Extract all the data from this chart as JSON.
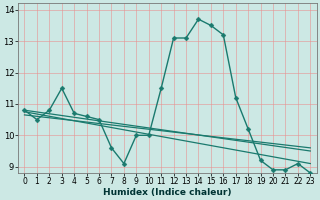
{
  "title": "",
  "xlabel": "Humidex (Indice chaleur)",
  "ylabel": "",
  "xlim": [
    -0.5,
    23.5
  ],
  "ylim": [
    8.8,
    14.2
  ],
  "xticks": [
    0,
    1,
    2,
    3,
    4,
    5,
    6,
    7,
    8,
    9,
    10,
    11,
    12,
    13,
    14,
    15,
    16,
    17,
    18,
    19,
    20,
    21,
    22,
    23
  ],
  "yticks": [
    9,
    10,
    11,
    12,
    13,
    14
  ],
  "background_color": "#cce8e4",
  "grid_color": "#e89090",
  "line_color": "#1a7a6e",
  "tick_fontsize": 5.5,
  "xlabel_fontsize": 6.5,
  "lines": [
    {
      "x": [
        0,
        1,
        2,
        3,
        4,
        5,
        6,
        7,
        8,
        9,
        10,
        11,
        12,
        13,
        14,
        15,
        16,
        17,
        18,
        19,
        20,
        21,
        22,
        23
      ],
      "y": [
        10.8,
        10.5,
        10.8,
        11.5,
        10.7,
        10.6,
        10.5,
        9.6,
        9.1,
        10.0,
        10.0,
        11.5,
        13.1,
        13.1,
        13.7,
        13.5,
        13.2,
        11.2,
        10.2,
        9.2,
        8.9,
        8.9,
        9.1,
        8.8
      ],
      "marker": "D",
      "markersize": 2.5,
      "linewidth": 1.0,
      "has_marker": true
    },
    {
      "x": [
        0,
        23
      ],
      "y": [
        10.8,
        9.5
      ],
      "marker": null,
      "markersize": 0,
      "linewidth": 0.9,
      "has_marker": false
    },
    {
      "x": [
        0,
        23
      ],
      "y": [
        10.65,
        9.6
      ],
      "marker": null,
      "markersize": 0,
      "linewidth": 0.9,
      "has_marker": false
    },
    {
      "x": [
        0,
        23
      ],
      "y": [
        10.75,
        9.1
      ],
      "marker": null,
      "markersize": 0,
      "linewidth": 0.9,
      "has_marker": false
    }
  ]
}
